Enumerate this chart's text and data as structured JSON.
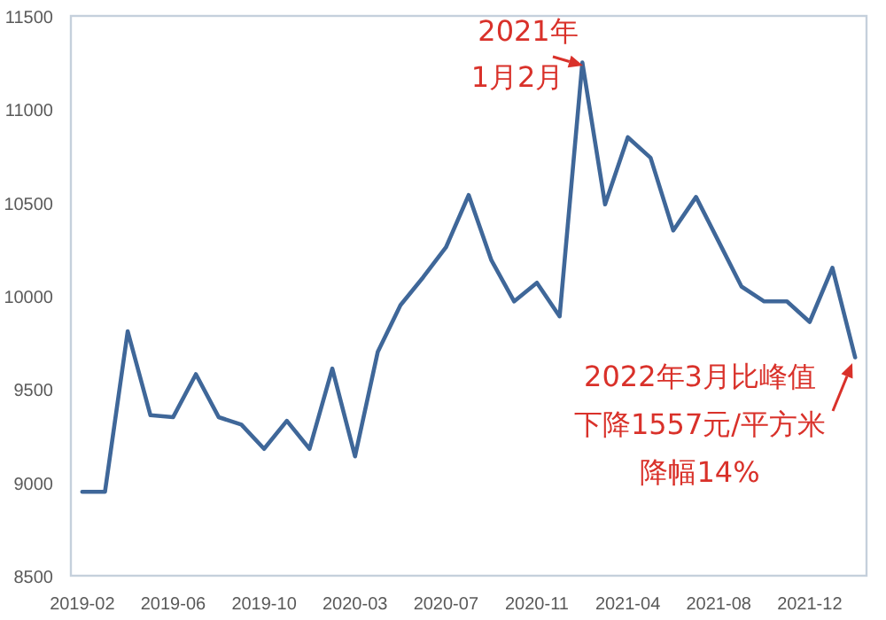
{
  "chart_data": {
    "type": "line",
    "categories": [
      "2019-02",
      null,
      null,
      null,
      "2019-06",
      null,
      null,
      null,
      "2019-10",
      null,
      null,
      null,
      "2020-03",
      null,
      null,
      null,
      "2020-07",
      null,
      null,
      null,
      "2020-11",
      null,
      null,
      null,
      "2021-04",
      null,
      null,
      null,
      "2021-08",
      null,
      null,
      null,
      "2021-12",
      null,
      null
    ],
    "values": [
      8950,
      8950,
      9810,
      9360,
      9350,
      9580,
      9350,
      9310,
      9180,
      9330,
      9180,
      9610,
      9140,
      9700,
      9950,
      10100,
      10260,
      10540,
      10190,
      9970,
      10070,
      9890,
      11250,
      10490,
      10850,
      10740,
      10350,
      10530,
      10290,
      10050,
      9970,
      9970,
      9860,
      10150,
      9670
    ],
    "color": "#3f6799",
    "ylim": [
      8500,
      11500
    ],
    "yticks": [
      8500,
      9000,
      9500,
      10000,
      10500,
      11000,
      11500
    ],
    "annotations": [
      "2021年",
      "1月2月",
      "2022年3月比峰值",
      "下降1557元/平方米",
      "降幅14%"
    ]
  }
}
